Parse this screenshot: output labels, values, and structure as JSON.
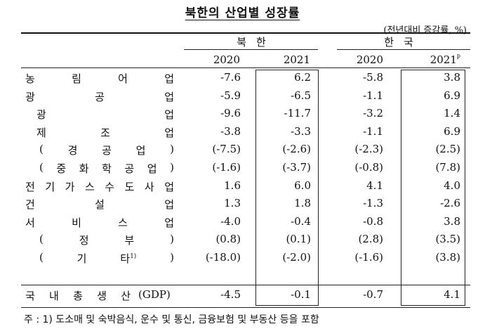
{
  "title": "북한의 산업별 성장률",
  "unit_note": "(전년대비 증감률, %)",
  "groups": [
    {
      "label": "북한"
    },
    {
      "label": "한국"
    }
  ],
  "years": [
    "2020",
    "2021",
    "2020",
    "2021"
  ],
  "year_superscript": "p",
  "rows": [
    {
      "label": "농림어업",
      "spread": true,
      "indent": 0,
      "values": [
        "-7.6",
        "6.2",
        "-5.8",
        "3.8"
      ]
    },
    {
      "label": "광공업",
      "spread": true,
      "indent": 0,
      "values": [
        "-5.9",
        "-6.5",
        "-1.1",
        "6.9"
      ]
    },
    {
      "label": "광업",
      "spread": true,
      "indent": 1,
      "values": [
        "-9.6",
        "-11.7",
        "-3.2",
        "1.4"
      ]
    },
    {
      "label": "제조업",
      "spread": true,
      "indent": 1,
      "values": [
        "-3.8",
        "-3.3",
        "-1.1",
        "6.9"
      ]
    },
    {
      "label": "(경공업)",
      "spread": true,
      "indent": 2,
      "values": [
        "(-7.5)",
        "(-2.6)",
        "(-2.3)",
        "(2.5)"
      ]
    },
    {
      "label": "(중화학공업)",
      "spread": true,
      "indent": 2,
      "values": [
        "(-1.6)",
        "(-3.7)",
        "(-0.8)",
        "(7.8)"
      ]
    },
    {
      "label": "전기가스수도사업",
      "spread": true,
      "indent": 0,
      "values": [
        "1.6",
        "6.0",
        "4.1",
        "4.0"
      ]
    },
    {
      "label": "건설업",
      "spread": true,
      "indent": 0,
      "values": [
        "1.3",
        "1.8",
        "-1.3",
        "-2.6"
      ]
    },
    {
      "label": "서비스업",
      "spread": true,
      "indent": 0,
      "values": [
        "-4.0",
        "-0.4",
        "-0.8",
        "3.8"
      ]
    },
    {
      "label": "(정부)",
      "spread": true,
      "indent": 2,
      "values": [
        "(0.8)",
        "(0.1)",
        "(2.8)",
        "(3.5)"
      ]
    },
    {
      "label": "(기타)",
      "spread": true,
      "indent": 2,
      "superscript": "1)",
      "values": [
        "(-18.0)",
        "(-2.0)",
        "(-1.6)",
        "(3.8)"
      ]
    }
  ],
  "total_row": {
    "label": "국내총생산",
    "suffix": "(GDP)",
    "values": [
      "-4.5",
      "-0.1",
      "-0.7",
      "4.1"
    ]
  },
  "footnote": "주 : 1) 도소매 및 숙박음식, 운수 및 통신, 금융보험 및 부동산 등을 포함"
}
